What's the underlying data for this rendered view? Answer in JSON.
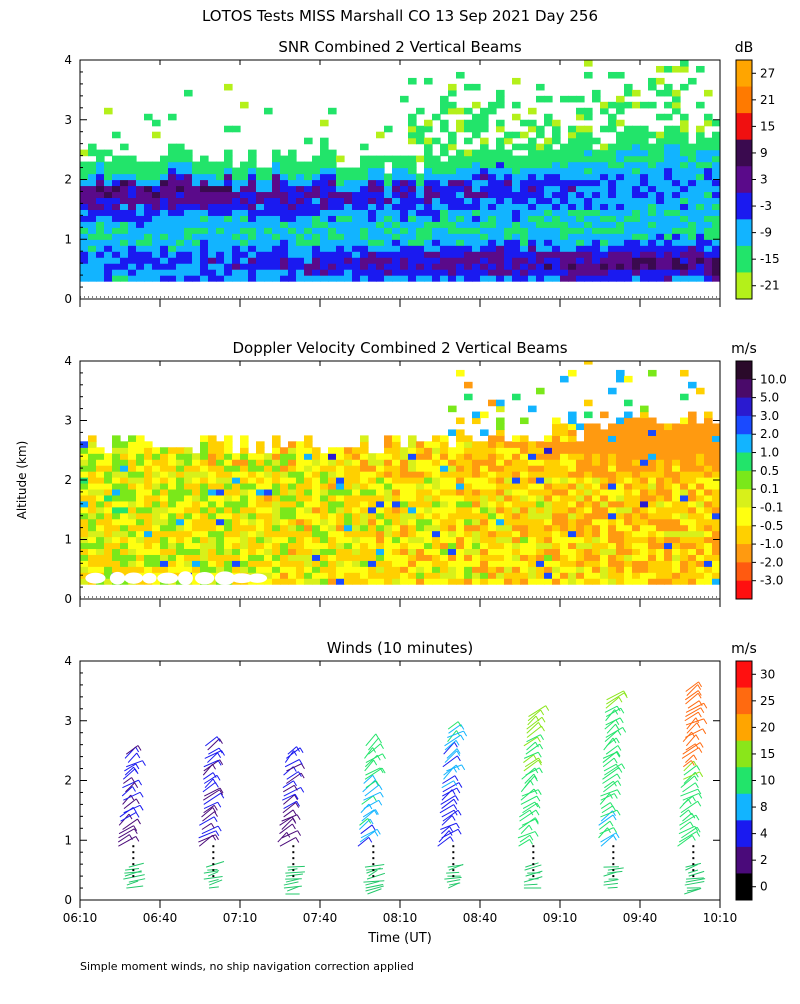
{
  "page": {
    "main_title": "LOTOS Tests MISS Marshall CO  13 Sep 2021 Day 256",
    "ylabel": "Altitude (km)",
    "xlabel": "Time (UT)",
    "footnote": "Simple moment winds, no ship navigation correction applied"
  },
  "chart_data": [
    {
      "type": "heatmap",
      "title": "SNR Combined 2 Vertical Beams",
      "xlabel": "",
      "ylabel": "Altitude (km)",
      "x_range_hours_ut": [
        6.1667,
        10.1667
      ],
      "ylim": [
        0,
        4
      ],
      "y_ticks": [
        "0",
        "1",
        "2",
        "3",
        "4"
      ],
      "x_tick_count": 9,
      "colorbar": {
        "unit": "dB",
        "tick_labels": [
          "27",
          "21",
          "15",
          "9",
          "3",
          "-3",
          "-9",
          "-15",
          "-21"
        ],
        "colors": [
          "#ffa500",
          "#ff7a00",
          "#f01010",
          "#3a0a4f",
          "#5a0a8a",
          "#1a1af0",
          "#12b4ff",
          "#22e46a",
          "#b4f01a"
        ]
      }
    },
    {
      "type": "heatmap",
      "title": "Doppler Velocity Combined 2 Vertical Beams",
      "xlabel": "",
      "ylabel": "Altitude (km)",
      "x_range_hours_ut": [
        6.1667,
        10.1667
      ],
      "ylim": [
        0,
        4
      ],
      "y_ticks": [
        "0",
        "1",
        "2",
        "3",
        "4"
      ],
      "x_tick_count": 9,
      "colorbar": {
        "unit": "m/s",
        "tick_labels": [
          "10.0",
          "5.0",
          "3.0",
          "2.0",
          "1.0",
          "0.5",
          "0.1",
          "-0.1",
          "-0.5",
          "-1.0",
          "-2.0",
          "-3.0"
        ],
        "colors": [
          "#2a0a2a",
          "#4a0a6a",
          "#2a1ad0",
          "#1a4aff",
          "#12b4ff",
          "#22e46a",
          "#7ae81a",
          "#d8f01a",
          "#ffff10",
          "#ffd000",
          "#ff9a10",
          "#ff5a10",
          "#ff1010"
        ]
      }
    },
    {
      "type": "scatter",
      "title": "Winds (10 minutes)",
      "xlabel": "Time (UT)",
      "ylabel": "Altitude (km)",
      "x_range_hours_ut": [
        6.1667,
        10.1667
      ],
      "ylim": [
        0,
        4
      ],
      "y_ticks": [
        "0",
        "1",
        "2",
        "3",
        "4"
      ],
      "x_ticks": [
        "06:10",
        "06:40",
        "07:10",
        "07:40",
        "08:10",
        "08:40",
        "09:10",
        "09:40",
        "10:10"
      ],
      "colorbar": {
        "unit": "m/s",
        "tick_labels": [
          "30",
          "25",
          "20",
          "15",
          "10",
          "8",
          "4",
          "2",
          "0"
        ],
        "colors": [
          "#ff1010",
          "#ff6a10",
          "#ffa500",
          "#8ae61a",
          "#22e46a",
          "#12b4ff",
          "#1a1af0",
          "#4a0a7a",
          "#000000"
        ]
      },
      "wind_profiles": [
        {
          "time": "06:30",
          "z_bottom": 0.2,
          "z_top": 2.5,
          "dominant_speed_ms": 4
        },
        {
          "time": "07:00",
          "z_bottom": 0.2,
          "z_top": 2.6,
          "dominant_speed_ms": 4
        },
        {
          "time": "07:30",
          "z_bottom": 0.1,
          "z_top": 2.5,
          "dominant_speed_ms": 4
        },
        {
          "time": "08:00",
          "z_bottom": 0.1,
          "z_top": 2.6,
          "dominant_speed_ms": 10
        },
        {
          "time": "08:30",
          "z_bottom": 0.2,
          "z_top": 2.9,
          "dominant_speed_ms": 8
        },
        {
          "time": "09:00",
          "z_bottom": 0.2,
          "z_top": 3.1,
          "dominant_speed_ms": 14
        },
        {
          "time": "09:30",
          "z_bottom": 0.2,
          "z_top": 3.4,
          "dominant_speed_ms": 12
        },
        {
          "time": "10:00",
          "z_bottom": 0.1,
          "z_top": 3.5,
          "dominant_speed_ms": 15
        }
      ]
    }
  ]
}
